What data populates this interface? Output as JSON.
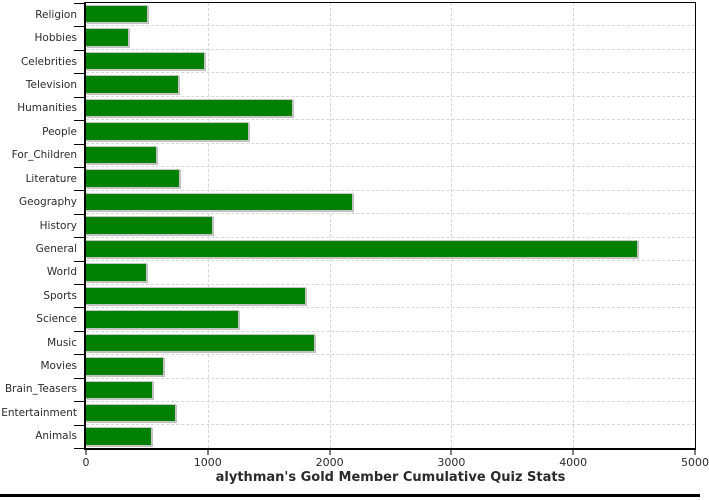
{
  "chart_data": {
    "type": "bar",
    "orientation": "horizontal",
    "title": "alythman's Gold Member Cumulative Quiz Stats",
    "categories": [
      "Religion",
      "Hobbies",
      "Celebrities",
      "Television",
      "Humanities",
      "People",
      "For_Children",
      "Literature",
      "Geography",
      "History",
      "General",
      "World",
      "Sports",
      "Science",
      "Music",
      "Movies",
      "Brain_Teasers",
      "Entertainment",
      "Animals"
    ],
    "values": [
      510,
      355,
      980,
      765,
      1700,
      1340,
      580,
      770,
      2195,
      1040,
      4530,
      500,
      1805,
      1255,
      1880,
      640,
      550,
      735,
      545
    ],
    "xlabel": "",
    "ylabel": "",
    "xlim": [
      0,
      5000
    ],
    "x_ticks": [
      0,
      1000,
      2000,
      3000,
      4000,
      5000
    ],
    "x_tick_labels": [
      "0",
      "1000",
      "2000",
      "3000",
      "4000",
      "5000"
    ],
    "grid": "dashed",
    "legend": "none",
    "colors": {
      "bar_fill": "#008000",
      "bar_border": "#c4c4c4",
      "gridline": "#d6d6d6",
      "axis": "#000000",
      "text": "#2b2b2b",
      "background": "#ffffff"
    }
  }
}
